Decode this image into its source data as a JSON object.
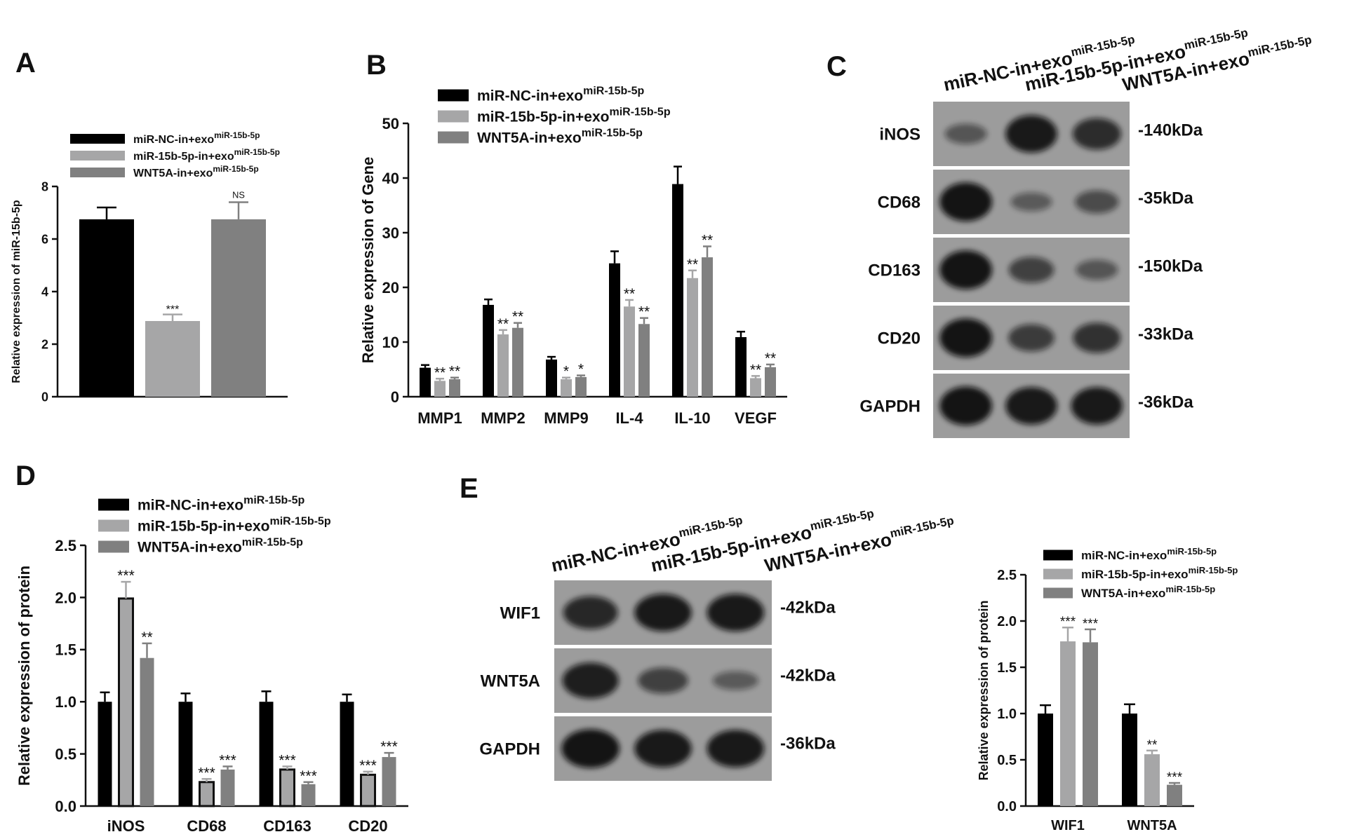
{
  "legend_labels": {
    "nc": "miR-NC-in+exo",
    "mir": "miR-15b-5p-in+exo",
    "wnt": "WNT5A-in+exo",
    "sup": "miR-15b-5p"
  },
  "colors": {
    "nc": "#000000",
    "mir": "#a6a6a7",
    "wnt": "#808080",
    "blot_bg": "#9c9c9c"
  },
  "chart_data": [
    {
      "panel": "A",
      "type": "bar",
      "ylabel": "Relative expression of miR-15b-5p",
      "ylim": [
        0,
        8
      ],
      "yticks": [
        0,
        2,
        4,
        6,
        8
      ],
      "categories": [
        ""
      ],
      "series": [
        {
          "name": "miR-NC-in+exo miR-15b-5p",
          "values": [
            6.75
          ],
          "errors": [
            0.45
          ],
          "sig": [
            ""
          ]
        },
        {
          "name": "miR-15b-5p-in+exo miR-15b-5p",
          "values": [
            2.88
          ],
          "errors": [
            0.25
          ],
          "sig": [
            "***"
          ]
        },
        {
          "name": "WNT5A-in+exo miR-15b-5p",
          "values": [
            6.75
          ],
          "errors": [
            0.65
          ],
          "sig": [
            "NS"
          ]
        }
      ]
    },
    {
      "panel": "B",
      "type": "bar",
      "ylabel": "Relative expression of Gene",
      "ylim": [
        0,
        50
      ],
      "yticks": [
        0,
        10,
        20,
        30,
        40,
        50
      ],
      "categories": [
        "MMP1",
        "MMP2",
        "MMP9",
        "IL-4",
        "IL-10",
        "VEGF"
      ],
      "series": [
        {
          "name": "miR-NC-in+exo miR-15b-5p",
          "values": [
            5.3,
            16.8,
            6.8,
            24.4,
            38.9,
            10.9
          ],
          "errors": [
            0.5,
            1.0,
            0.5,
            2.2,
            3.2,
            1.0
          ],
          "sig": [
            "",
            "",
            "",
            "",
            "",
            ""
          ]
        },
        {
          "name": "miR-15b-5p-in+exo miR-15b-5p",
          "values": [
            2.9,
            11.4,
            3.2,
            16.5,
            21.7,
            3.4
          ],
          "errors": [
            0.4,
            0.8,
            0.3,
            1.2,
            1.4,
            0.4
          ],
          "sig": [
            "**",
            "**",
            "*",
            "**",
            "**",
            "**"
          ]
        },
        {
          "name": "WNT5A-in+exo miR-15b-5p",
          "values": [
            3.2,
            12.6,
            3.6,
            13.3,
            25.5,
            5.4
          ],
          "errors": [
            0.3,
            0.9,
            0.3,
            1.1,
            2.0,
            0.5
          ],
          "sig": [
            "**",
            "**",
            "*",
            "**",
            "**",
            "**"
          ]
        }
      ]
    },
    {
      "panel": "D",
      "type": "bar",
      "ylabel": "Relative expression of protein",
      "ylim": [
        0,
        2.5
      ],
      "yticks": [
        "0.0",
        "0.5",
        "1.0",
        "1.5",
        "2.0",
        "2.5"
      ],
      "categories": [
        "iNOS",
        "CD68",
        "CD163",
        "CD20"
      ],
      "series": [
        {
          "name": "miR-NC-in+exo miR-15b-5p",
          "values": [
            1.0,
            1.0,
            1.0,
            1.0
          ],
          "errors": [
            0.09,
            0.08,
            0.1,
            0.07
          ],
          "sig": [
            "",
            "",
            "",
            ""
          ]
        },
        {
          "name": "miR-15b-5p-in+exo miR-15b-5p",
          "values": [
            1.99,
            0.23,
            0.35,
            0.3
          ],
          "errors": [
            0.16,
            0.03,
            0.03,
            0.03
          ],
          "sig": [
            "***",
            "***",
            "***",
            "***"
          ]
        },
        {
          "name": "WNT5A-in+exo miR-15b-5p",
          "values": [
            1.42,
            0.35,
            0.21,
            0.47
          ],
          "errors": [
            0.14,
            0.03,
            0.02,
            0.04
          ],
          "sig": [
            "**",
            "***",
            "***",
            "***"
          ]
        }
      ]
    },
    {
      "panel": "E",
      "type": "bar",
      "ylabel": "Relative expression of protein",
      "ylim": [
        0,
        2.5
      ],
      "yticks": [
        "0.0",
        "0.5",
        "1.0",
        "1.5",
        "2.0",
        "2.5"
      ],
      "categories": [
        "WIF1",
        "WNT5A"
      ],
      "series": [
        {
          "name": "miR-NC-in+exo miR-15b-5p",
          "values": [
            1.0,
            1.0
          ],
          "errors": [
            0.09,
            0.1
          ],
          "sig": [
            "",
            ""
          ]
        },
        {
          "name": "miR-15b-5p-in+exo miR-15b-5p",
          "values": [
            1.78,
            0.56
          ],
          "errors": [
            0.15,
            0.04
          ],
          "sig": [
            "***",
            "**"
          ]
        },
        {
          "name": "WNT5A-in+exo miR-15b-5p",
          "values": [
            1.77,
            0.23
          ],
          "errors": [
            0.14,
            0.02
          ],
          "sig": [
            "***",
            "***"
          ]
        }
      ]
    }
  ],
  "blots": {
    "C": {
      "lanes": [
        "miR-NC-in+exo",
        "miR-15b-5p-in+exo",
        "WNT5A-in+exo"
      ],
      "rows": [
        {
          "protein": "iNOS",
          "size": "-140kDa",
          "intensity": [
            0.35,
            0.95,
            0.75
          ]
        },
        {
          "protein": "CD68",
          "size": "-35kDa",
          "intensity": [
            1.0,
            0.3,
            0.45
          ]
        },
        {
          "protein": "CD163",
          "size": "-150kDa",
          "intensity": [
            1.0,
            0.55,
            0.35
          ]
        },
        {
          "protein": "CD20",
          "size": "-33kDa",
          "intensity": [
            1.0,
            0.6,
            0.7
          ]
        },
        {
          "protein": "GAPDH",
          "size": "-36kDa",
          "intensity": [
            1.0,
            0.95,
            0.95
          ]
        }
      ]
    },
    "E": {
      "lanes": [
        "miR-NC-in+exo",
        "miR-15b-5p-in+exo",
        "WNT5A-in+exo"
      ],
      "rows": [
        {
          "protein": "WIF1",
          "size": "-42kDa",
          "intensity": [
            0.8,
            0.95,
            0.95
          ]
        },
        {
          "protein": "WNT5A",
          "size": "-42kDa",
          "intensity": [
            0.9,
            0.55,
            0.3
          ]
        },
        {
          "protein": "GAPDH",
          "size": "-36kDa",
          "intensity": [
            1.0,
            0.95,
            0.95
          ]
        }
      ]
    }
  },
  "panel_letters": [
    "A",
    "B",
    "C",
    "D",
    "E"
  ]
}
